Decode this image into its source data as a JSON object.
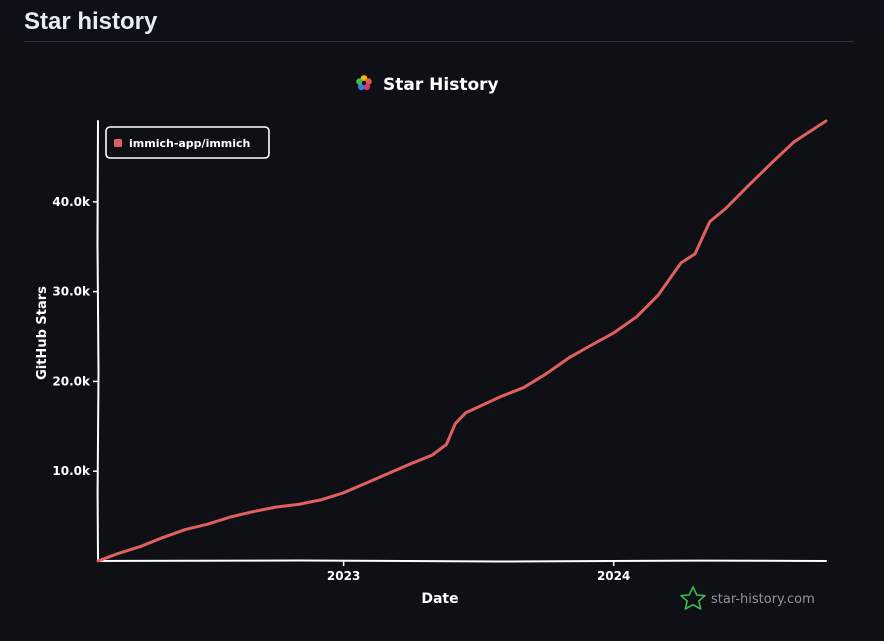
{
  "page": {
    "title": "Star history"
  },
  "chart_data": {
    "type": "line",
    "title": "Star History",
    "xlabel": "Date",
    "ylabel": "GitHub Stars",
    "x_ticks": [
      "2023",
      "2024"
    ],
    "y_ticks": [
      "10.0k",
      "20.0k",
      "30.0k",
      "40.0k"
    ],
    "ylim": [
      0,
      49000
    ],
    "xlim": [
      "2022-02-03",
      "2024-10-14"
    ],
    "grid": false,
    "legend_position": "top-left",
    "watermark": "star-history.com",
    "series": [
      {
        "name": "immich-app/immich",
        "color": "#e0605e",
        "points": [
          {
            "x": "2022-02-03",
            "y": 0
          },
          {
            "x": "2022-03-01",
            "y": 800
          },
          {
            "x": "2022-04-01",
            "y": 1600
          },
          {
            "x": "2022-05-01",
            "y": 2600
          },
          {
            "x": "2022-06-01",
            "y": 3500
          },
          {
            "x": "2022-07-01",
            "y": 4100
          },
          {
            "x": "2022-08-01",
            "y": 4900
          },
          {
            "x": "2022-09-01",
            "y": 5500
          },
          {
            "x": "2022-10-01",
            "y": 6000
          },
          {
            "x": "2022-11-01",
            "y": 6300
          },
          {
            "x": "2022-12-01",
            "y": 6800
          },
          {
            "x": "2023-01-01",
            "y": 7600
          },
          {
            "x": "2023-02-01",
            "y": 8700
          },
          {
            "x": "2023-03-01",
            "y": 9700
          },
          {
            "x": "2023-04-01",
            "y": 10800
          },
          {
            "x": "2023-05-01",
            "y": 11800
          },
          {
            "x": "2023-05-20",
            "y": 13000
          },
          {
            "x": "2023-06-01",
            "y": 15300
          },
          {
            "x": "2023-06-15",
            "y": 16500
          },
          {
            "x": "2023-07-01",
            "y": 17100
          },
          {
            "x": "2023-08-01",
            "y": 18300
          },
          {
            "x": "2023-09-01",
            "y": 19300
          },
          {
            "x": "2023-10-01",
            "y": 20800
          },
          {
            "x": "2023-11-01",
            "y": 22600
          },
          {
            "x": "2023-12-01",
            "y": 24000
          },
          {
            "x": "2024-01-01",
            "y": 25400
          },
          {
            "x": "2024-02-01",
            "y": 27200
          },
          {
            "x": "2024-03-01",
            "y": 29600
          },
          {
            "x": "2024-04-01",
            "y": 33200
          },
          {
            "x": "2024-04-20",
            "y": 34200
          },
          {
            "x": "2024-05-10",
            "y": 37800
          },
          {
            "x": "2024-06-01",
            "y": 39300
          },
          {
            "x": "2024-07-01",
            "y": 41800
          },
          {
            "x": "2024-08-01",
            "y": 44300
          },
          {
            "x": "2024-09-01",
            "y": 46700
          },
          {
            "x": "2024-10-14",
            "y": 49000
          }
        ]
      }
    ]
  }
}
